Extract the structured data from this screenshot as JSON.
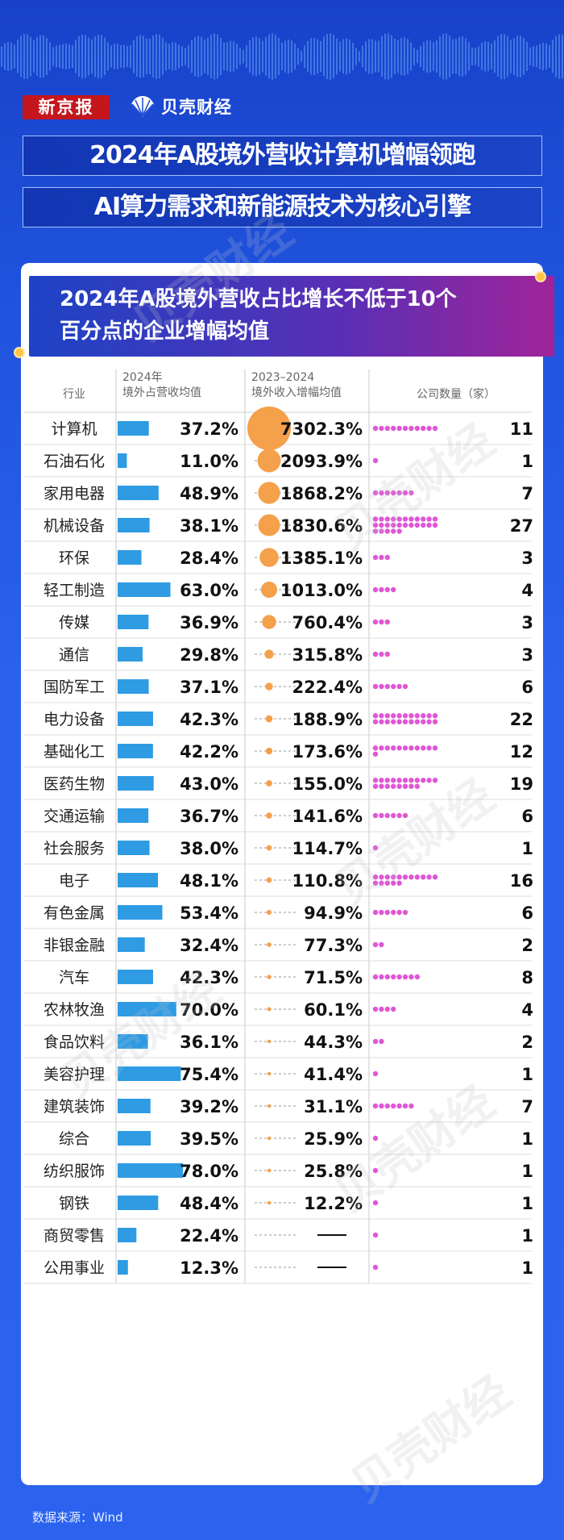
{
  "header": {
    "logo_text": "新京报",
    "brand_text": "贝壳财经",
    "headline_1": "2024年A股境外营收计算机增幅领跑",
    "headline_2": "AI算力需求和新能源技术为核心引擎",
    "subtitle_1": "2024年A股境外营收占比增长不低于10个",
    "subtitle_2": "百分点的企业增幅均值",
    "watermark": "贝壳财经"
  },
  "colors": {
    "bar": "#2e9be3",
    "bubble": "#f5a04a",
    "company_dot": "#e057d6",
    "accent": "#ffc445"
  },
  "source": "数据来源：Wind",
  "chart_data": {
    "type": "table",
    "columns": {
      "industry": "行业",
      "share_line1": "2024年",
      "share_line2": "境外占营收均值",
      "growth_line1": "2023–2024",
      "growth_line2": "境外收入增幅均值",
      "companies": "公司数量（家）"
    },
    "rows": [
      {
        "industry": "计算机",
        "share": 37.2,
        "share_label": "37.2%",
        "growth": 7302.3,
        "growth_label": "7302.3%",
        "companies": 11
      },
      {
        "industry": "石油石化",
        "share": 11.0,
        "share_label": "11.0%",
        "growth": 2093.9,
        "growth_label": "2093.9%",
        "companies": 1
      },
      {
        "industry": "家用电器",
        "share": 48.9,
        "share_label": "48.9%",
        "growth": 1868.2,
        "growth_label": "1868.2%",
        "companies": 7
      },
      {
        "industry": "机械设备",
        "share": 38.1,
        "share_label": "38.1%",
        "growth": 1830.6,
        "growth_label": "1830.6%",
        "companies": 27
      },
      {
        "industry": "环保",
        "share": 28.4,
        "share_label": "28.4%",
        "growth": 1385.1,
        "growth_label": "1385.1%",
        "companies": 3
      },
      {
        "industry": "轻工制造",
        "share": 63.0,
        "share_label": "63.0%",
        "growth": 1013.0,
        "growth_label": "1013.0%",
        "companies": 4
      },
      {
        "industry": "传媒",
        "share": 36.9,
        "share_label": "36.9%",
        "growth": 760.4,
        "growth_label": "760.4%",
        "companies": 3
      },
      {
        "industry": "通信",
        "share": 29.8,
        "share_label": "29.8%",
        "growth": 315.8,
        "growth_label": "315.8%",
        "companies": 3
      },
      {
        "industry": "国防军工",
        "share": 37.1,
        "share_label": "37.1%",
        "growth": 222.4,
        "growth_label": "222.4%",
        "companies": 6
      },
      {
        "industry": "电力设备",
        "share": 42.3,
        "share_label": "42.3%",
        "growth": 188.9,
        "growth_label": "188.9%",
        "companies": 22
      },
      {
        "industry": "基础化工",
        "share": 42.2,
        "share_label": "42.2%",
        "growth": 173.6,
        "growth_label": "173.6%",
        "companies": 12
      },
      {
        "industry": "医药生物",
        "share": 43.0,
        "share_label": "43.0%",
        "growth": 155.0,
        "growth_label": "155.0%",
        "companies": 19
      },
      {
        "industry": "交通运输",
        "share": 36.7,
        "share_label": "36.7%",
        "growth": 141.6,
        "growth_label": "141.6%",
        "companies": 6
      },
      {
        "industry": "社会服务",
        "share": 38.0,
        "share_label": "38.0%",
        "growth": 114.7,
        "growth_label": "114.7%",
        "companies": 1
      },
      {
        "industry": "电子",
        "share": 48.1,
        "share_label": "48.1%",
        "growth": 110.8,
        "growth_label": "110.8%",
        "companies": 16
      },
      {
        "industry": "有色金属",
        "share": 53.4,
        "share_label": "53.4%",
        "growth": 94.9,
        "growth_label": "94.9%",
        "companies": 6
      },
      {
        "industry": "非银金融",
        "share": 32.4,
        "share_label": "32.4%",
        "growth": 77.3,
        "growth_label": "77.3%",
        "companies": 2
      },
      {
        "industry": "汽车",
        "share": 42.3,
        "share_label": "42.3%",
        "growth": 71.5,
        "growth_label": "71.5%",
        "companies": 8
      },
      {
        "industry": "农林牧渔",
        "share": 70.0,
        "share_label": "70.0%",
        "growth": 60.1,
        "growth_label": "60.1%",
        "companies": 4
      },
      {
        "industry": "食品饮料",
        "share": 36.1,
        "share_label": "36.1%",
        "growth": 44.3,
        "growth_label": "44.3%",
        "companies": 2
      },
      {
        "industry": "美容护理",
        "share": 75.4,
        "share_label": "75.4%",
        "growth": 41.4,
        "growth_label": "41.4%",
        "companies": 1
      },
      {
        "industry": "建筑装饰",
        "share": 39.2,
        "share_label": "39.2%",
        "growth": 31.1,
        "growth_label": "31.1%",
        "companies": 7
      },
      {
        "industry": "综合",
        "share": 39.5,
        "share_label": "39.5%",
        "growth": 25.9,
        "growth_label": "25.9%",
        "companies": 1
      },
      {
        "industry": "纺织服饰",
        "share": 78.0,
        "share_label": "78.0%",
        "growth": 25.8,
        "growth_label": "25.8%",
        "companies": 1
      },
      {
        "industry": "钢铁",
        "share": 48.4,
        "share_label": "48.4%",
        "growth": 12.2,
        "growth_label": "12.2%",
        "companies": 1
      },
      {
        "industry": "商贸零售",
        "share": 22.4,
        "share_label": "22.4%",
        "growth": null,
        "growth_label": "——",
        "companies": 1
      },
      {
        "industry": "公用事业",
        "share": 12.3,
        "share_label": "12.3%",
        "growth": null,
        "growth_label": "——",
        "companies": 1
      }
    ]
  }
}
